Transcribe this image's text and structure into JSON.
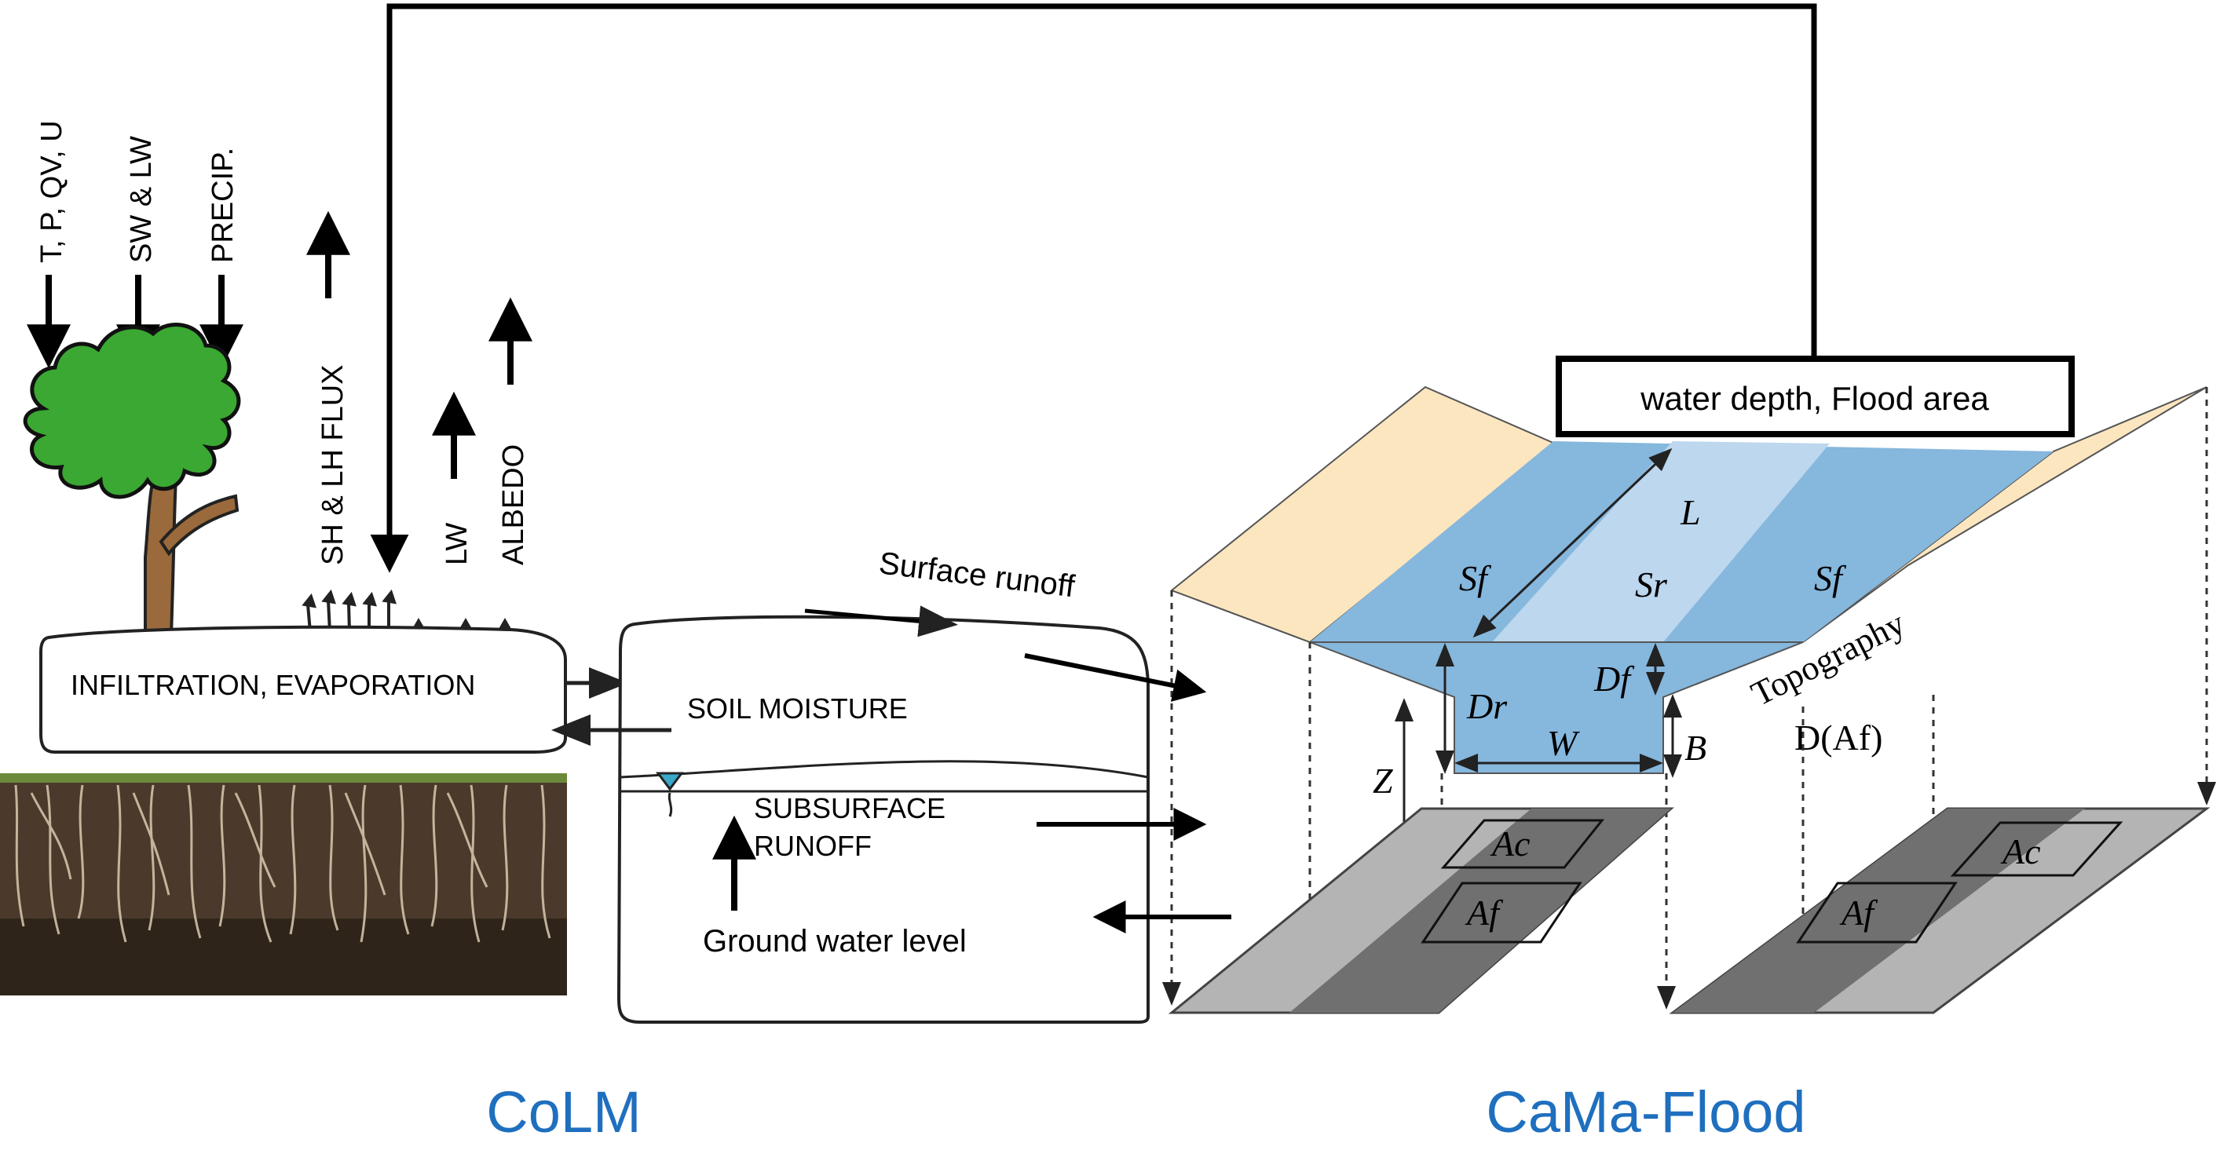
{
  "forcing": {
    "t_p_qv_u": "T, P, QV, U",
    "sw_lw": "SW & LW",
    "precip": "PRECIP.",
    "sh_lh_flux": "SH & LH FLUX",
    "lw": "LW",
    "albedo": "ALBEDO"
  },
  "colm": {
    "infiltration": "INFILTRATION, EVAPORATION",
    "soil_moisture": "SOIL MOISTURE",
    "subsurface": "SUBSURFACE",
    "runoff": "RUNOFF",
    "ground_water": "Ground water level",
    "surface_runoff": "Surface runoff"
  },
  "cama": {
    "feedback_box": "water depth, Flood area",
    "L": "L",
    "Sf": "Sf",
    "Sr": "Sr",
    "Df": "Df",
    "Dr": "Dr",
    "W": "W",
    "B": "B",
    "Z": "Z",
    "topography": "Topography",
    "d_af": "D(Af)",
    "Ac": "Ac",
    "Af": "Af"
  },
  "labels": {
    "colm": "CoLM",
    "cama": "CaMa-Flood"
  },
  "colors": {
    "accent_blue": "#1f6fbf",
    "bank": "#fce6c0",
    "floodplain_water": "#86b7dd",
    "river_water": "#bcd7ee",
    "tree_green": "#3aa832",
    "tree_trunk": "#9a6a3c",
    "grid_dark": "#707070",
    "grid_light": "#b4b4b4"
  }
}
